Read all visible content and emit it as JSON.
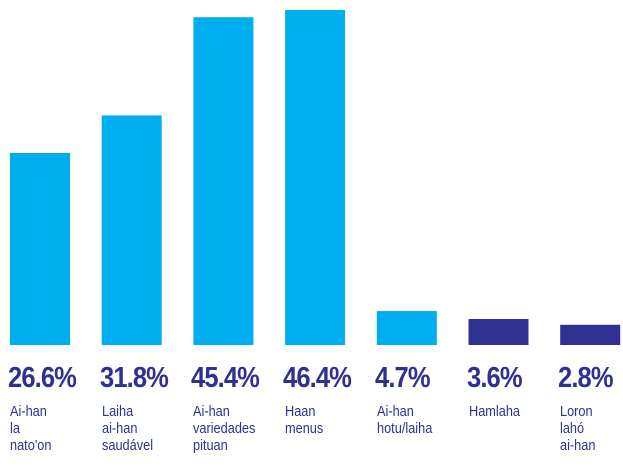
{
  "chart_data": {
    "type": "bar",
    "categories": [
      "Ai-han\nla\nnato'on",
      "Laiha\nai-han\nsaudável",
      "Ai-han\nvariedades\npituan",
      "Haan\nmenus",
      "Ai-han\nhotu/laiha",
      "Hamlaha",
      "Loron\nlahó\nai-han"
    ],
    "values": [
      26.6,
      31.8,
      45.4,
      46.4,
      4.7,
      3.6,
      2.8
    ],
    "value_labels": [
      "26.6%",
      "31.8%",
      "45.4%",
      "46.4%",
      "4.7%",
      "3.6%",
      "2.8%"
    ],
    "colors": [
      "#00aeef",
      "#00aeef",
      "#00aeef",
      "#00aeef",
      "#00aeef",
      "#2e3192",
      "#2e3192"
    ]
  }
}
